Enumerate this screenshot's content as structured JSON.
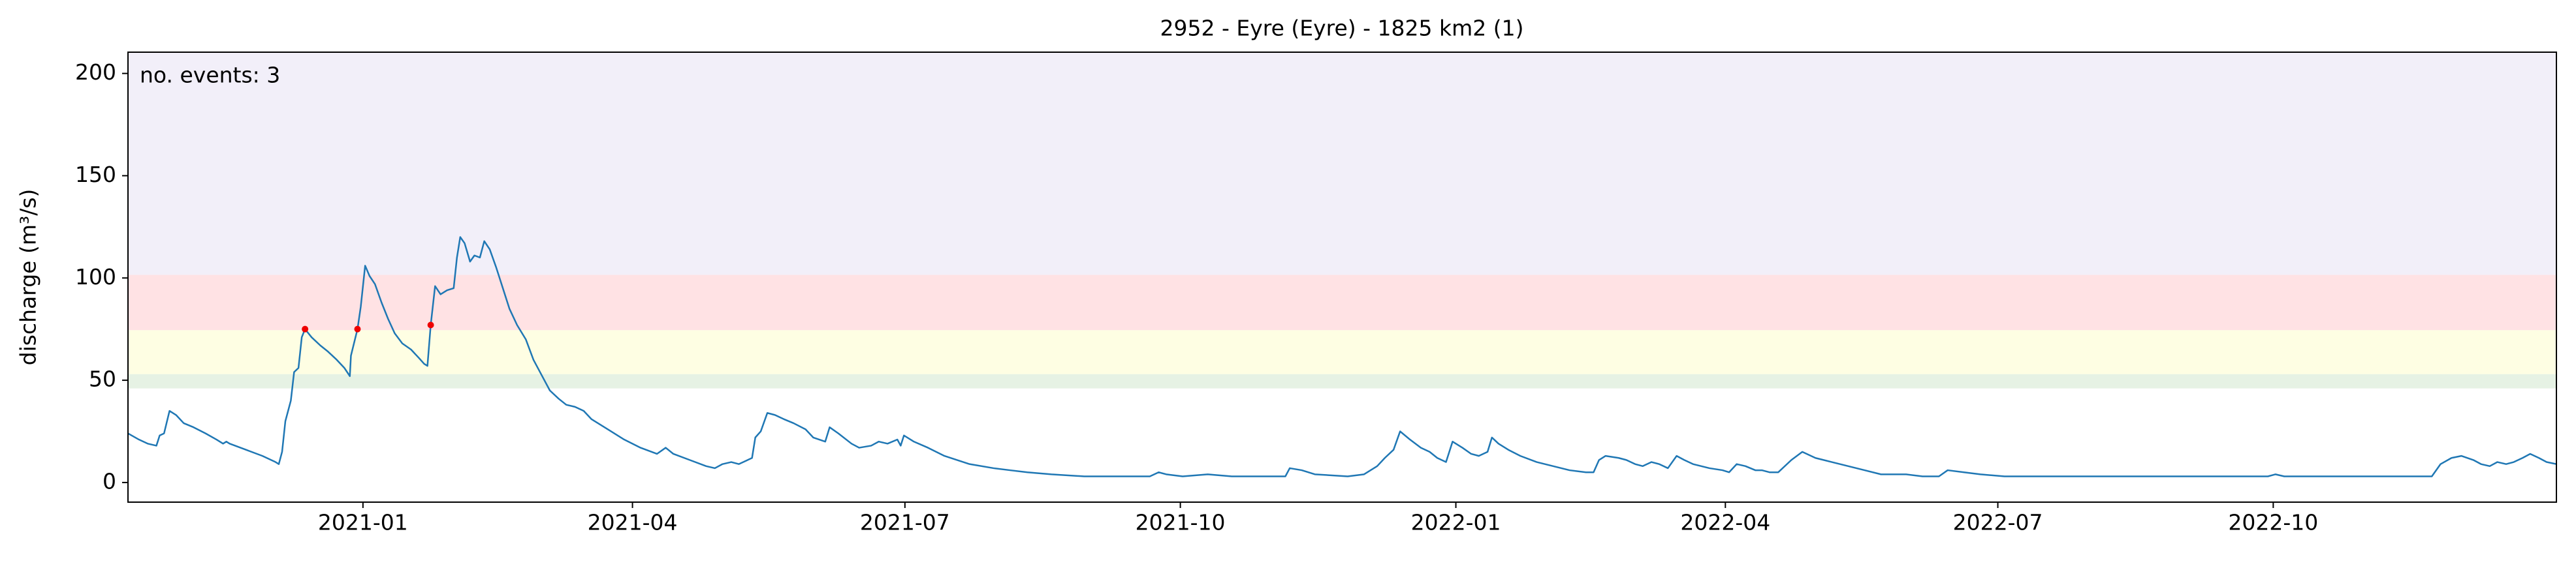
{
  "chart_data": {
    "type": "line",
    "title": "2952 - Eyre (Eyre) - 1825 km2 (1)",
    "ylabel": "discharge (m³/s)",
    "annotation": "no. events: 3",
    "annotation_color": "#ee0000",
    "xlim": [
      2020.785,
      2023.007
    ],
    "xticks": [
      {
        "value": 2021.0,
        "label": "2021-01"
      },
      {
        "value": 2021.2466,
        "label": "2021-04"
      },
      {
        "value": 2021.4959,
        "label": "2021-07"
      },
      {
        "value": 2021.7479,
        "label": "2021-10"
      },
      {
        "value": 2022.0,
        "label": "2022-01"
      },
      {
        "value": 2022.2466,
        "label": "2022-04"
      },
      {
        "value": 2022.4959,
        "label": "2022-07"
      },
      {
        "value": 2022.7479,
        "label": "2022-10"
      }
    ],
    "ylim": [
      -9.6,
      210.4
    ],
    "yticks": [
      0,
      50,
      100,
      150,
      200
    ],
    "grid": false,
    "bands": [
      {
        "range": [
          46,
          53
        ],
        "color": "#e6f2e4"
      },
      {
        "range": [
          53,
          74.5
        ],
        "color": "#fefee3"
      },
      {
        "range": [
          74.5,
          101.5
        ],
        "color": "#ffe2e4"
      },
      {
        "range": [
          101.5,
          210.4
        ],
        "color": "#f2eff9"
      }
    ],
    "series": [
      {
        "color": "#1f77b4",
        "x": [
          2020.785,
          2020.795,
          2020.803,
          2020.811,
          2020.814,
          2020.818,
          2020.823,
          2020.829,
          2020.836,
          2020.845,
          2020.856,
          2020.866,
          2020.872,
          2020.875,
          2020.878,
          2020.893,
          2020.908,
          2020.92,
          2020.923,
          2020.926,
          2020.929,
          2020.934,
          2020.937,
          2020.941,
          2020.944,
          2020.947,
          2020.953,
          2020.961,
          2020.968,
          2020.976,
          2020.983,
          2020.988,
          2020.989,
          2020.995,
          2020.998,
          2021.002,
          2021.006,
          2021.011,
          2021.017,
          2021.023,
          2021.029,
          2021.036,
          2021.044,
          2021.051,
          2021.056,
          2021.059,
          2021.062,
          2021.066,
          2021.071,
          2021.077,
          2021.083,
          2021.086,
          2021.089,
          2021.093,
          2021.098,
          2021.102,
          2021.107,
          2021.111,
          2021.116,
          2021.122,
          2021.128,
          2021.134,
          2021.141,
          2021.149,
          2021.156,
          2021.164,
          2021.171,
          2021.179,
          2021.186,
          2021.194,
          2021.202,
          2021.209,
          2021.224,
          2021.239,
          2021.254,
          2021.269,
          2021.277,
          2021.284,
          2021.299,
          2021.314,
          2021.322,
          2021.329,
          2021.337,
          2021.344,
          2021.352,
          2021.356,
          2021.359,
          2021.364,
          2021.37,
          2021.377,
          2021.385,
          2021.394,
          2021.405,
          2021.412,
          2021.423,
          2021.427,
          2021.435,
          2021.447,
          2021.454,
          2021.465,
          2021.472,
          2021.48,
          2021.489,
          2021.492,
          2021.495,
          2021.504,
          2021.517,
          2021.532,
          2021.555,
          2021.577,
          2021.592,
          2021.608,
          2021.63,
          2021.66,
          2021.69,
          2021.72,
          2021.728,
          2021.735,
          2021.75,
          2021.773,
          2021.795,
          2021.826,
          2021.844,
          2021.848,
          2021.859,
          2021.871,
          2021.901,
          2021.916,
          2021.928,
          2021.935,
          2021.943,
          2021.949,
          2021.958,
          2021.968,
          2021.976,
          2021.983,
          2021.991,
          2021.997,
          2022.006,
          2022.014,
          2022.021,
          2022.029,
          2022.033,
          2022.039,
          2022.048,
          2022.059,
          2022.074,
          2022.089,
          2022.104,
          2022.119,
          2022.126,
          2022.131,
          2022.137,
          2022.149,
          2022.156,
          2022.164,
          2022.171,
          2022.179,
          2022.186,
          2022.194,
          2022.202,
          2022.209,
          2022.217,
          2022.232,
          2022.244,
          2022.25,
          2022.257,
          2022.265,
          2022.274,
          2022.28,
          2022.287,
          2022.295,
          2022.307,
          2022.317,
          2022.329,
          2022.344,
          2022.359,
          2022.374,
          2022.389,
          2022.412,
          2022.427,
          2022.442,
          2022.45,
          2022.465,
          2022.48,
          2022.502,
          2022.532,
          2022.562,
          2022.623,
          2022.653,
          2022.69,
          2022.713,
          2022.743,
          2022.75,
          2022.758,
          2022.803,
          2022.848,
          2022.871,
          2022.893,
          2022.901,
          2022.911,
          2022.92,
          2022.931,
          2022.938,
          2022.946,
          2022.953,
          2022.961,
          2022.968,
          2022.976,
          2022.983,
          2022.991,
          2022.998,
          2023.007
        ],
        "values": [
          24,
          21,
          19,
          18,
          23,
          24,
          35,
          33,
          29,
          27,
          24,
          21,
          19,
          20,
          19,
          16,
          13,
          10,
          9,
          15,
          30,
          40,
          54,
          56,
          71,
          75,
          71,
          67,
          64,
          60,
          56,
          52,
          62,
          75,
          86,
          106,
          101,
          97,
          88,
          80,
          73,
          68,
          65,
          61,
          58,
          57,
          77,
          96,
          92,
          94,
          95,
          110,
          120,
          117,
          108,
          111,
          110,
          118,
          114,
          105,
          95,
          85,
          77,
          70,
          60,
          52,
          45,
          41,
          38,
          37,
          35,
          31,
          26,
          21,
          17,
          14,
          17,
          14,
          11,
          8,
          7,
          9,
          10,
          9,
          11,
          12,
          22,
          25,
          34,
          33,
          31,
          29,
          26,
          22,
          20,
          27,
          24,
          19,
          17,
          18,
          20,
          19,
          21,
          18,
          23,
          20,
          17,
          13,
          9,
          7,
          6,
          5,
          4,
          3,
          3,
          3,
          5,
          4,
          3,
          4,
          3,
          3,
          3,
          7,
          6,
          4,
          3,
          4,
          8,
          12,
          16,
          25,
          21,
          17,
          15,
          12,
          10,
          20,
          17,
          14,
          13,
          15,
          22,
          19,
          16,
          13,
          10,
          8,
          6,
          5,
          5,
          11,
          13,
          12,
          11,
          9,
          8,
          10,
          9,
          7,
          13,
          11,
          9,
          7,
          6,
          5,
          9,
          8,
          6,
          6,
          5,
          5,
          11,
          15,
          12,
          10,
          8,
          6,
          4,
          4,
          3,
          3,
          6,
          5,
          4,
          3,
          3,
          3,
          3,
          3,
          3,
          3,
          3,
          4,
          3,
          3,
          3,
          3,
          3,
          9,
          12,
          13,
          11,
          9,
          8,
          10,
          9,
          10,
          12,
          14,
          12,
          10,
          9
        ]
      },
      {
        "type": "scatter",
        "color": "#ee0000",
        "x": [
          2020.947,
          2020.995,
          2021.062
        ],
        "values": [
          75,
          75,
          77
        ]
      }
    ]
  }
}
